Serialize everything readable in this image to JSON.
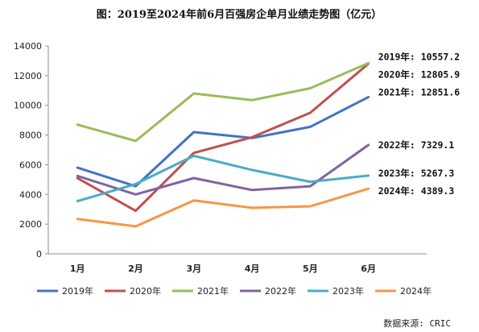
{
  "chart_data": {
    "type": "line",
    "title": "图：2019至2024年前6月百强房企单月业绩走势图（亿元）",
    "categories": [
      "1月",
      "2月",
      "3月",
      "4月",
      "5月",
      "6月"
    ],
    "ylim": [
      0,
      14000
    ],
    "yticks": [
      "0",
      "2000",
      "4000",
      "6000",
      "8000",
      "10000",
      "12000",
      "14000"
    ],
    "grid": false,
    "legend_position": "bottom",
    "series": [
      {
        "name": "2019年",
        "color": "#4472c4",
        "values": [
          5800,
          4550,
          8200,
          7800,
          8550,
          10557.2
        ]
      },
      {
        "name": "2020年",
        "color": "#c0504d",
        "values": [
          5100,
          2900,
          6800,
          7850,
          9500,
          12805.9
        ]
      },
      {
        "name": "2021年",
        "color": "#9bbb59",
        "values": [
          8700,
          7600,
          10800,
          10350,
          11150,
          12851.6
        ]
      },
      {
        "name": "2022年",
        "color": "#8064a2",
        "values": [
          5250,
          4000,
          5100,
          4300,
          4550,
          7329.1
        ]
      },
      {
        "name": "2023年",
        "color": "#4bacc6",
        "values": [
          3550,
          4700,
          6600,
          5650,
          4850,
          5267.3
        ]
      },
      {
        "name": "2024年",
        "color": "#f79646",
        "values": [
          2350,
          1850,
          3600,
          3100,
          3200,
          4389.3
        ]
      }
    ],
    "annotations": [
      "2021年: 12851.6",
      "2020年: 12805.9",
      "2019年: 10557.2",
      "2022年: 7329.1",
      "2023年: 5267.3",
      "2024年: 4389.3"
    ],
    "source": "数据来源: CRIC"
  }
}
